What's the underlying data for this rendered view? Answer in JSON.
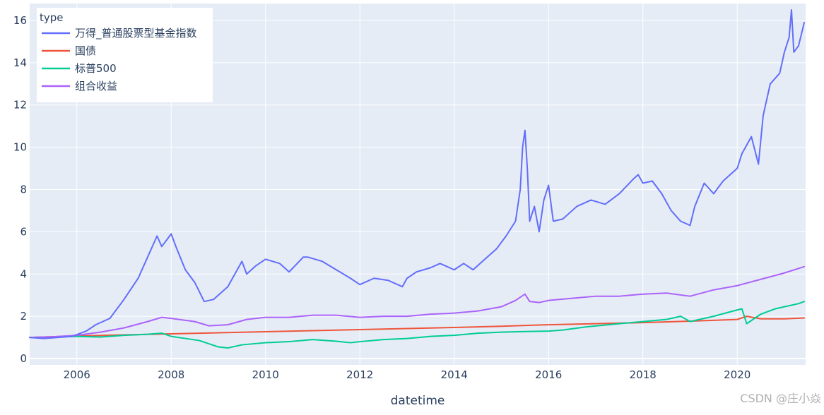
{
  "chart_data": {
    "type": "line",
    "title": "",
    "xlabel": "datetime",
    "ylabel": "",
    "x_ticks": [
      "2006",
      "2008",
      "2010",
      "2012",
      "2014",
      "2016",
      "2018",
      "2020"
    ],
    "y_ticks": [
      "0",
      "2",
      "4",
      "6",
      "8",
      "10",
      "12",
      "14",
      "16"
    ],
    "xlim": [
      2005.0,
      2021.45
    ],
    "ylim": [
      -0.3,
      16.8
    ],
    "grid": true,
    "legend": {
      "title": "type",
      "placement": "top-left"
    },
    "series": [
      {
        "name": "万得_普通股票型基金指数",
        "color": "#636efa",
        "x": [
          2005.0,
          2005.3,
          2005.6,
          2005.9,
          2006.2,
          2006.4,
          2006.7,
          2007.0,
          2007.3,
          2007.5,
          2007.7,
          2007.8,
          2007.9,
          2008.0,
          2008.1,
          2008.3,
          2008.5,
          2008.7,
          2008.9,
          2009.2,
          2009.5,
          2009.6,
          2009.8,
          2010.0,
          2010.3,
          2010.5,
          2010.8,
          2010.9,
          2011.2,
          2011.5,
          2011.8,
          2012.0,
          2012.3,
          2012.6,
          2012.9,
          2013.0,
          2013.2,
          2013.5,
          2013.7,
          2014.0,
          2014.2,
          2014.4,
          2014.6,
          2014.9,
          2015.1,
          2015.3,
          2015.4,
          2015.45,
          2015.5,
          2015.55,
          2015.6,
          2015.7,
          2015.8,
          2015.9,
          2016.0,
          2016.1,
          2016.3,
          2016.6,
          2016.9,
          2017.2,
          2017.5,
          2017.8,
          2017.9,
          2018.0,
          2018.2,
          2018.4,
          2018.6,
          2018.8,
          2019.0,
          2019.1,
          2019.3,
          2019.5,
          2019.7,
          2020.0,
          2020.1,
          2020.3,
          2020.45,
          2020.55,
          2020.7,
          2020.9,
          2021.0,
          2021.1,
          2021.15,
          2021.2,
          2021.3,
          2021.42
        ],
        "values": [
          1.0,
          0.95,
          1.0,
          1.05,
          1.3,
          1.6,
          1.9,
          2.8,
          3.8,
          4.8,
          5.8,
          5.3,
          5.6,
          5.9,
          5.3,
          4.2,
          3.6,
          2.7,
          2.8,
          3.4,
          4.6,
          4.0,
          4.4,
          4.7,
          4.5,
          4.1,
          4.8,
          4.8,
          4.6,
          4.2,
          3.8,
          3.5,
          3.8,
          3.7,
          3.4,
          3.8,
          4.1,
          4.3,
          4.5,
          4.2,
          4.5,
          4.2,
          4.6,
          5.2,
          5.8,
          6.5,
          8.0,
          10.0,
          10.8,
          9.0,
          6.5,
          7.2,
          6.0,
          7.5,
          8.2,
          6.5,
          6.6,
          7.2,
          7.5,
          7.3,
          7.8,
          8.5,
          8.7,
          8.3,
          8.4,
          7.8,
          7.0,
          6.5,
          6.3,
          7.2,
          8.3,
          7.8,
          8.4,
          9.0,
          9.7,
          10.5,
          9.2,
          11.5,
          13.0,
          13.5,
          14.5,
          15.2,
          16.5,
          14.5,
          14.8,
          15.9
        ]
      },
      {
        "name": "国债",
        "color": "#ef553b",
        "x": [
          2005.0,
          2006.0,
          2007.0,
          2008.0,
          2009.0,
          2010.0,
          2011.0,
          2012.0,
          2013.0,
          2014.0,
          2015.0,
          2016.0,
          2017.0,
          2018.0,
          2019.0,
          2020.0,
          2020.2,
          2020.5,
          2021.0,
          2021.42
        ],
        "values": [
          1.0,
          1.07,
          1.12,
          1.17,
          1.22,
          1.27,
          1.32,
          1.37,
          1.42,
          1.47,
          1.53,
          1.6,
          1.65,
          1.7,
          1.77,
          1.85,
          2.0,
          1.88,
          1.88,
          1.92
        ]
      },
      {
        "name": "标普500",
        "color": "#00cc96",
        "x": [
          2005.0,
          2005.5,
          2006.0,
          2006.5,
          2007.0,
          2007.5,
          2007.8,
          2008.0,
          2008.3,
          2008.6,
          2008.8,
          2009.0,
          2009.2,
          2009.5,
          2010.0,
          2010.5,
          2011.0,
          2011.5,
          2011.8,
          2012.0,
          2012.5,
          2013.0,
          2013.5,
          2014.0,
          2014.5,
          2015.0,
          2015.5,
          2016.0,
          2016.3,
          2016.8,
          2017.5,
          2018.0,
          2018.5,
          2018.8,
          2019.0,
          2019.5,
          2020.0,
          2020.1,
          2020.2,
          2020.5,
          2020.8,
          2021.0,
          2021.3,
          2021.42
        ],
        "values": [
          1.0,
          1.02,
          1.05,
          1.02,
          1.1,
          1.15,
          1.2,
          1.05,
          0.95,
          0.85,
          0.7,
          0.55,
          0.5,
          0.65,
          0.75,
          0.8,
          0.9,
          0.82,
          0.75,
          0.8,
          0.9,
          0.95,
          1.05,
          1.1,
          1.2,
          1.25,
          1.28,
          1.3,
          1.35,
          1.5,
          1.65,
          1.75,
          1.85,
          2.0,
          1.75,
          2.0,
          2.3,
          2.35,
          1.65,
          2.1,
          2.35,
          2.45,
          2.6,
          2.7
        ]
      },
      {
        "name": "组合收益",
        "color": "#ab63fa",
        "x": [
          2005.0,
          2005.5,
          2006.0,
          2006.5,
          2007.0,
          2007.5,
          2007.8,
          2008.0,
          2008.5,
          2008.8,
          2009.2,
          2009.6,
          2010.0,
          2010.5,
          2011.0,
          2011.5,
          2012.0,
          2012.5,
          2013.0,
          2013.5,
          2014.0,
          2014.5,
          2015.0,
          2015.3,
          2015.5,
          2015.6,
          2015.8,
          2016.0,
          2016.5,
          2017.0,
          2017.5,
          2018.0,
          2018.5,
          2019.0,
          2019.5,
          2020.0,
          2020.5,
          2021.0,
          2021.42
        ],
        "values": [
          1.0,
          1.03,
          1.1,
          1.25,
          1.45,
          1.75,
          1.95,
          1.9,
          1.75,
          1.55,
          1.6,
          1.85,
          1.95,
          1.95,
          2.05,
          2.05,
          1.95,
          2.0,
          2.0,
          2.1,
          2.15,
          2.25,
          2.45,
          2.75,
          3.05,
          2.7,
          2.65,
          2.75,
          2.85,
          2.95,
          2.95,
          3.05,
          3.1,
          2.95,
          3.25,
          3.45,
          3.75,
          4.05,
          4.35
        ]
      }
    ]
  },
  "watermark": "CSDN @庄小焱"
}
